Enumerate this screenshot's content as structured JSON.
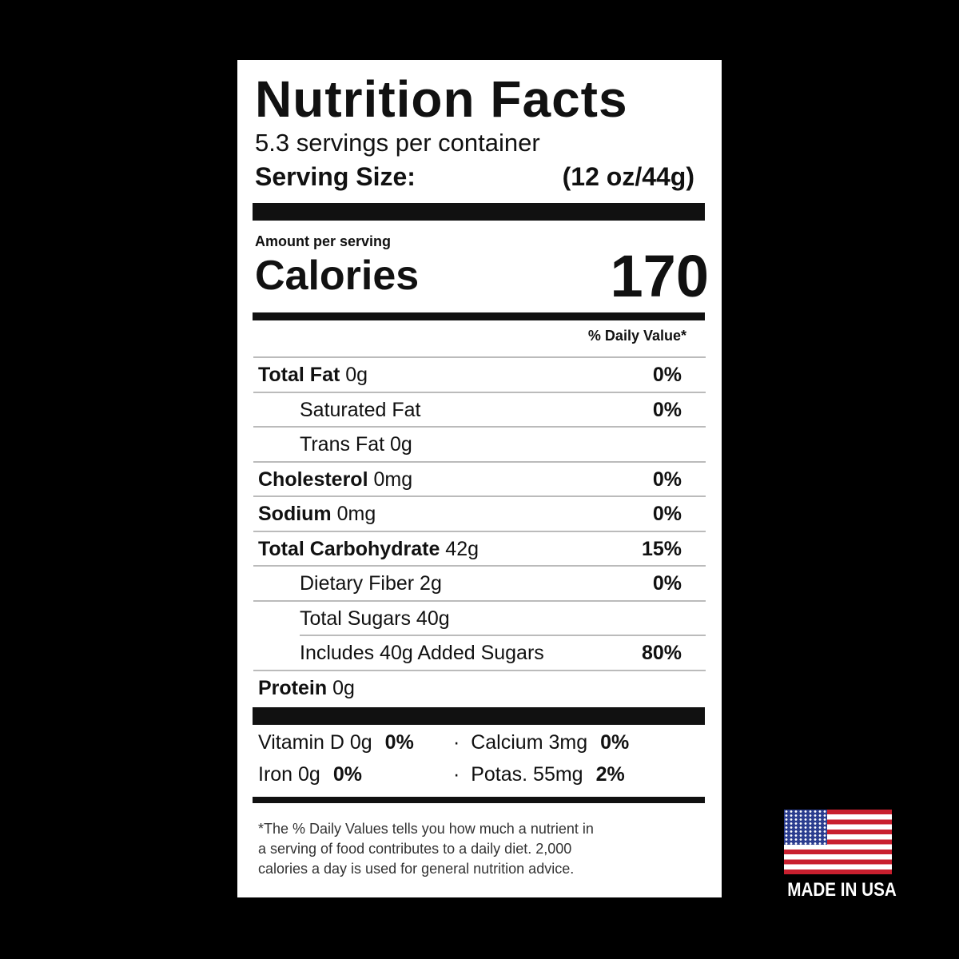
{
  "label": {
    "title": "Nutrition Facts",
    "servings": "5.3 servings per container",
    "serving_size_label": "Serving Size:",
    "serving_size_value": "(12 oz/44g)",
    "amount_per_serving": "Amount per serving",
    "calories_label": "Calories",
    "calories_value": "170",
    "daily_value_header": "% Daily Value*",
    "rows": [
      {
        "name": "Total Fat",
        "amount": "0g",
        "dv": "0%"
      },
      {
        "name": "Saturated Fat",
        "dv": "0%"
      },
      {
        "name": "Trans Fat 0g"
      },
      {
        "name": "Cholesterol",
        "amount": "0mg",
        "dv": "0%"
      },
      {
        "name": "Sodium",
        "amount": "0mg",
        "dv": "0%"
      },
      {
        "name": "Total Carbohydrate",
        "amount": "42g",
        "dv": "15%"
      },
      {
        "name": "Dietary Fiber 2g",
        "dv": "0%"
      },
      {
        "name": "Total Sugars 40g"
      },
      {
        "name": "Includes 40g Added Sugars",
        "dv": "80%"
      },
      {
        "name": "Protein",
        "amount": "0g"
      }
    ],
    "vitamins": [
      {
        "name": "Vitamin D 0g",
        "dv": "0%"
      },
      {
        "name": "Calcium 3mg",
        "dv": "0%"
      },
      {
        "name": "Iron 0g",
        "dv": "0%"
      },
      {
        "name": "Potas. 55mg",
        "dv": "2%"
      }
    ],
    "footnote": [
      "*The % Daily Values tells you how much a nutrient in",
      "a serving of food contributes to a daily diet. 2,000",
      "calories a day is used for general nutrition advice."
    ]
  },
  "badge": {
    "text": "MADE IN USA"
  }
}
